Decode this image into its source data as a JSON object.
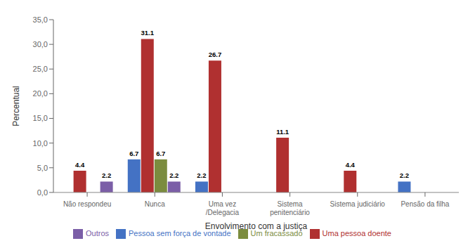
{
  "chart_data": {
    "type": "bar",
    "xlabel": "Envolvimento com a justiça",
    "ylabel": "Percentual",
    "categories": [
      "Não respondeu",
      "Nunca",
      "Uma vez\n/Delegacia",
      "Sistema\npenitenciário",
      "Sistema judiciário",
      "Pensão da filha"
    ],
    "series": [
      {
        "name": "Pessoa sem força de vontade",
        "color": "#4472C4",
        "values": [
          0.0,
          6.7,
          2.2,
          0.0,
          0.0,
          2.2
        ]
      },
      {
        "name": "Uma pessoa doente",
        "color": "#B03030",
        "values": [
          4.4,
          31.1,
          26.7,
          11.1,
          4.4,
          0.0
        ]
      },
      {
        "name": "Um fracassado",
        "color": "#7B8C3E",
        "values": [
          0.0,
          6.7,
          0.0,
          0.0,
          0.0,
          0.0
        ]
      },
      {
        "name": "Outros",
        "color": "#7B5EA7",
        "values": [
          2.2,
          2.2,
          0.0,
          0.0,
          0.0,
          0.0
        ]
      }
    ],
    "ylim": [
      0,
      35.0
    ],
    "yticks": [
      {
        "value": 0.0,
        "label": "0,0"
      },
      {
        "value": 5.0,
        "label": "5,0"
      },
      {
        "value": 10.0,
        "label": "10,0"
      },
      {
        "value": 15.0,
        "label": "15,0"
      },
      {
        "value": 20.0,
        "label": "20,0"
      },
      {
        "value": 25.0,
        "label": "25,0"
      },
      {
        "value": 30.0,
        "label": "30,0"
      },
      {
        "value": 35.0,
        "label": "35,0"
      }
    ],
    "grid": false,
    "legend": "bottom",
    "data_labels": true
  }
}
